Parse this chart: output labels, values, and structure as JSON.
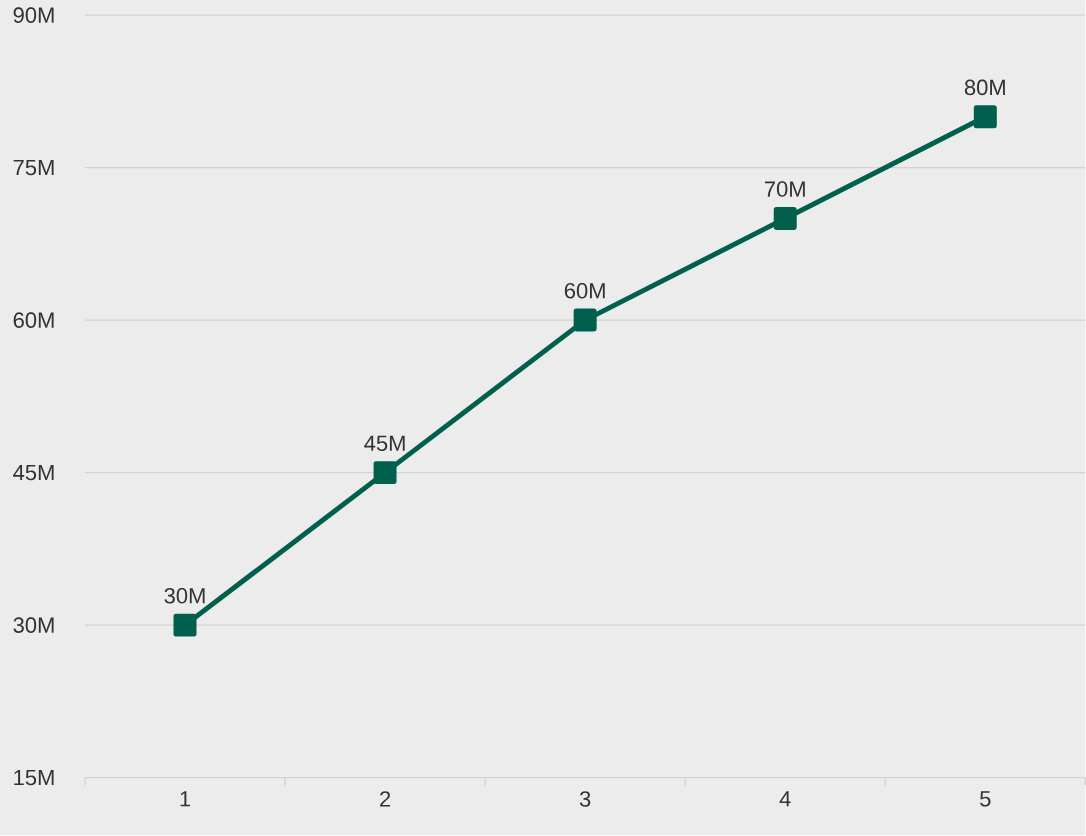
{
  "chart_data": {
    "type": "line",
    "categories": [
      "1",
      "2",
      "3",
      "4",
      "5"
    ],
    "series": [
      {
        "color": "#00604d",
        "values": [
          30,
          45,
          60,
          70,
          80
        ],
        "value_labels": [
          "30M",
          "45M",
          "60M",
          "70M",
          "80M"
        ]
      }
    ],
    "ylim": [
      15,
      90
    ],
    "yticks": [
      {
        "value": 15,
        "label": "15M"
      },
      {
        "value": 30,
        "label": "30M"
      },
      {
        "value": 45,
        "label": "45M"
      },
      {
        "value": 60,
        "label": "60M"
      },
      {
        "value": 75,
        "label": "75M"
      },
      {
        "value": 90,
        "label": "90M"
      }
    ],
    "grid": "y",
    "marker": "square",
    "line_style": "solid"
  }
}
